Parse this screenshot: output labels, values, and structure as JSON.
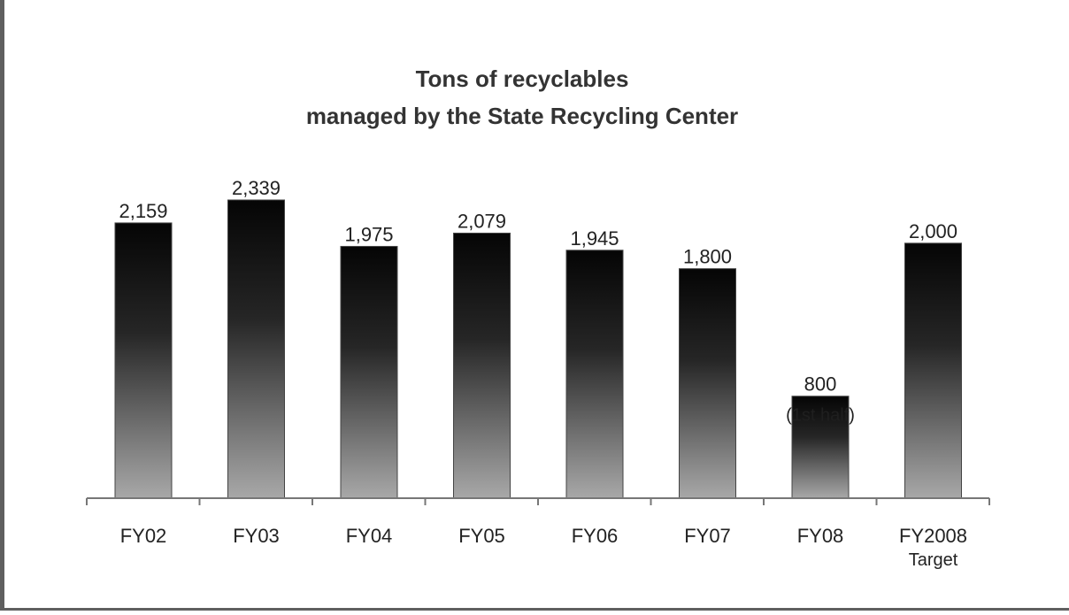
{
  "chart_data": {
    "type": "bar",
    "title": [
      "Tons of recyclables",
      "managed by the State Recycling Center"
    ],
    "categories": [
      [
        "FY02"
      ],
      [
        "FY03"
      ],
      [
        "FY04"
      ],
      [
        "FY05"
      ],
      [
        "FY06"
      ],
      [
        "FY07"
      ],
      [
        "FY08"
      ],
      [
        "FY2008",
        "Target"
      ]
    ],
    "values": [
      2159,
      2339,
      1975,
      2079,
      1945,
      1800,
      800,
      2000
    ],
    "data_labels": [
      [
        "2,159"
      ],
      [
        "2,339"
      ],
      [
        "1,975"
      ],
      [
        "2,079"
      ],
      [
        "1,945"
      ],
      [
        "1,800"
      ],
      [
        "800",
        "(1st half)"
      ],
      [
        "2,000"
      ]
    ],
    "xlabel": "",
    "ylabel": "",
    "ylim": [
      0,
      2339
    ],
    "grid": false,
    "legend": "none",
    "colors": {
      "bar_top": "#050505",
      "bar_bottom": "#a8a8a8",
      "axis": "#777777",
      "text": "#222222"
    }
  }
}
